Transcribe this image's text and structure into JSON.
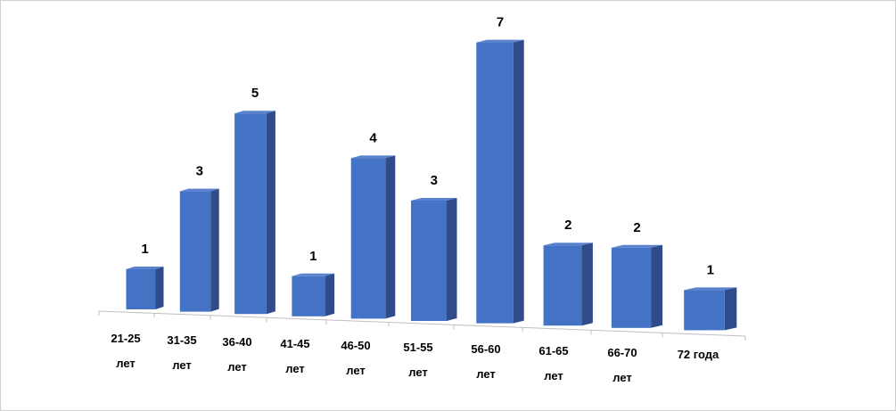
{
  "chart_data": {
    "type": "bar3d",
    "categories": [
      "21-25 лет",
      "31-35 лет",
      "36-40 лет",
      "41-45 лет",
      "46-50 лет",
      "51-55 лет",
      "56-60 лет",
      "61-65 лет",
      "66-70 лет",
      "72 года"
    ],
    "values": [
      1,
      3,
      5,
      1,
      4,
      3,
      7,
      2,
      2,
      1
    ],
    "color": "#4472c4"
  }
}
